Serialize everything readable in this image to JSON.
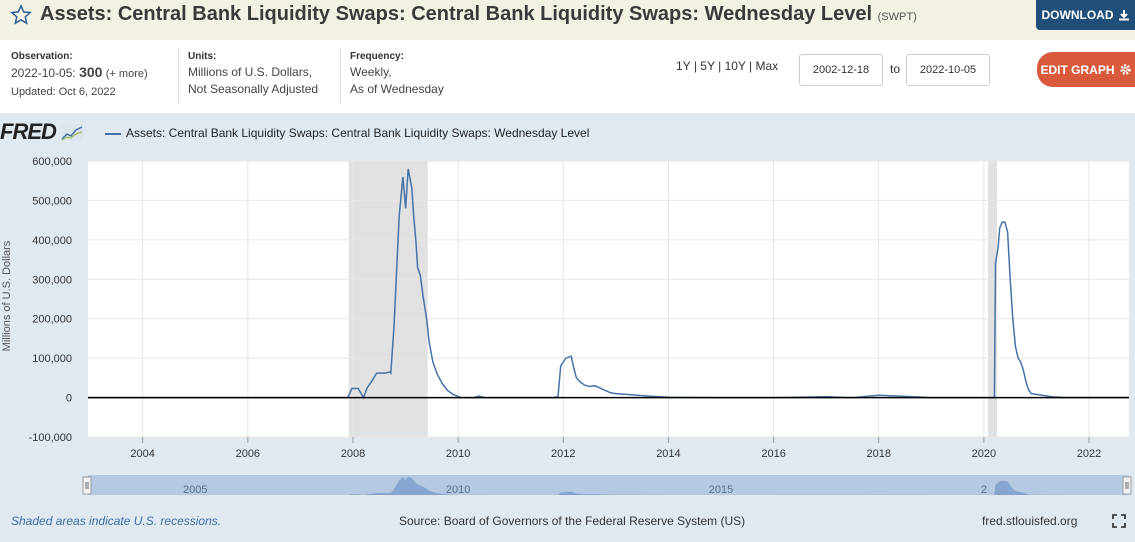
{
  "header": {
    "title": "Assets: Central Bank Liquidity Swaps: Central Bank Liquidity Swaps: Wednesday Level",
    "series_id": "(SWPT)",
    "download_label": "DOWNLOAD",
    "star_icon": "star-outline-icon",
    "download_icon": "download-icon"
  },
  "meta": {
    "observation_label": "Observation:",
    "observation_date": "2022-10-05:",
    "observation_value": "300",
    "observation_more": "(+ more)",
    "updated": "Updated: Oct 6, 2022",
    "units_label": "Units:",
    "units_line1": "Millions of U.S. Dollars,",
    "units_line2": "Not Seasonally Adjusted",
    "frequency_label": "Frequency:",
    "frequency_line1": "Weekly,",
    "frequency_line2": "As of Wednesday"
  },
  "controls": {
    "range_1y": "1Y",
    "range_5y": "5Y",
    "range_10y": "10Y",
    "range_max": "Max",
    "sep": "|",
    "start_date": "2002-12-18",
    "to_label": "to",
    "end_date": "2022-10-05",
    "edit_graph_label": "EDIT GRAPH",
    "gear_icon": "gear-icon"
  },
  "graph": {
    "logo_text": "FRED",
    "legend_label": "Assets: Central Bank Liquidity Swaps: Central Bank Liquidity Swaps: Wednesday Level",
    "line_color": "#4572a7",
    "recession_color": "#e1e1e1"
  },
  "chart_data": {
    "type": "line",
    "title": "",
    "xlabel": "",
    "ylabel": "Millions of U.S. Dollars",
    "x_ticks": [
      "2004",
      "2006",
      "2008",
      "2010",
      "2012",
      "2014",
      "2016",
      "2018",
      "2020",
      "2022"
    ],
    "y_ticks": [
      "-100,000",
      "0",
      "100,000",
      "200,000",
      "300,000",
      "400,000",
      "500,000",
      "600,000"
    ],
    "xlim": [
      2002.96,
      2022.76
    ],
    "ylim": [
      -100000,
      600000
    ],
    "recessions": [
      [
        2007.92,
        2009.42
      ],
      [
        2020.08,
        2020.25
      ]
    ],
    "series": [
      {
        "x": [
          2002.96,
          2007.5,
          2007.9,
          2007.98,
          2008.1,
          2008.2,
          2008.27,
          2008.35,
          2008.45,
          2008.6,
          2008.7,
          2008.72,
          2008.78,
          2008.85,
          2008.88,
          2008.92,
          2008.95,
          2009.0,
          2009.05,
          2009.1,
          2009.12,
          2009.15,
          2009.2,
          2009.23,
          2009.28,
          2009.33,
          2009.4,
          2009.45,
          2009.52,
          2009.6,
          2009.7,
          2009.8,
          2009.9,
          2010.0,
          2010.05,
          2010.3,
          2010.4,
          2010.5,
          2011.8,
          2011.9,
          2011.95,
          2012.05,
          2012.15,
          2012.2,
          2012.25,
          2012.32,
          2012.4,
          2012.5,
          2012.6,
          2012.7,
          2012.8,
          2012.9,
          2013.0,
          2013.2,
          2013.4,
          2013.6,
          2014.0,
          2015.0,
          2016.0,
          2017.0,
          2017.5,
          2018.0,
          2019.0,
          2020.0,
          2020.2,
          2020.22,
          2020.27,
          2020.3,
          2020.35,
          2020.4,
          2020.45,
          2020.5,
          2020.55,
          2020.6,
          2020.65,
          2020.7,
          2020.75,
          2020.8,
          2020.85,
          2020.9,
          2021.0,
          2021.1,
          2021.2,
          2021.3,
          2021.5,
          2022.0,
          2022.76
        ],
        "y": [
          0,
          0,
          0,
          23000,
          23000,
          0,
          25000,
          40000,
          62000,
          62000,
          65000,
          62000,
          180000,
          380000,
          460000,
          520000,
          560000,
          480000,
          580000,
          545000,
          530000,
          470000,
          390000,
          330000,
          310000,
          260000,
          200000,
          140000,
          90000,
          60000,
          35000,
          18000,
          8000,
          3000,
          0,
          0,
          4000,
          0,
          0,
          2000,
          80000,
          100000,
          105000,
          75000,
          50000,
          40000,
          32000,
          28000,
          30000,
          24000,
          18000,
          12000,
          10000,
          8000,
          6000,
          4000,
          1000,
          0,
          0,
          2000,
          0,
          6000,
          0,
          0,
          0,
          340000,
          380000,
          430000,
          445000,
          445000,
          420000,
          300000,
          200000,
          130000,
          100000,
          90000,
          70000,
          40000,
          20000,
          10000,
          8000,
          6000,
          4000,
          2000,
          500,
          300,
          300
        ]
      }
    ]
  },
  "navigator": {
    "labels": [
      "2005",
      "2010",
      "2015",
      "2"
    ]
  },
  "footer": {
    "recession_note": "Shaded areas indicate U.S. recessions.",
    "source": "Source: Board of Governors of the Federal Reserve System (US)",
    "site": "fred.stlouisfed.org",
    "fullscreen_icon": "fullscreen-icon"
  }
}
